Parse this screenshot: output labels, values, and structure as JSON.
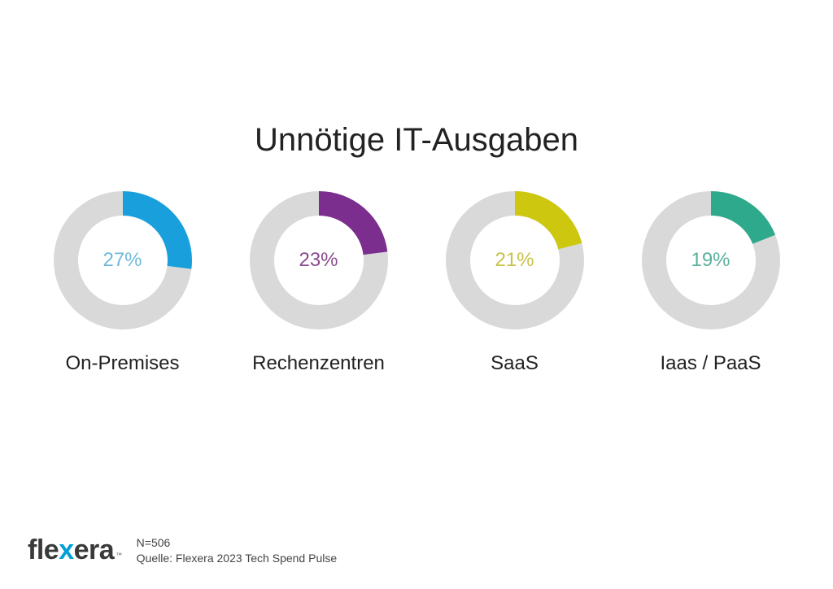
{
  "title": "Unnötige IT-Ausgaben",
  "background_color": "#ffffff",
  "title_fontsize": 40,
  "title_color": "#222222",
  "donut": {
    "track_color": "#d9d9d9",
    "track_width": 30,
    "outer_radius": 85,
    "label_fontsize": 24,
    "value_fontsize": 24,
    "label_color": "#222222"
  },
  "charts": [
    {
      "label": "On-Premises",
      "percent": 27,
      "color": "#19a0dc",
      "value_text": "27%",
      "value_color": "#6fb9d9"
    },
    {
      "label": "Rechenzentren",
      "percent": 23,
      "color": "#7b2e8e",
      "value_text": "23%",
      "value_color": "#8a4c8f"
    },
    {
      "label": "SaaS",
      "percent": 21,
      "color": "#cdc80f",
      "value_text": "21%",
      "value_color": "#c7c24a"
    },
    {
      "label": "Iaas / PaaS",
      "percent": 19,
      "color": "#2fa98b",
      "value_text": "19%",
      "value_color": "#5bb19d"
    }
  ],
  "footer": {
    "logo_text_pre": "fle",
    "logo_text_x": "x",
    "logo_text_post": "era",
    "logo_tm": "™",
    "n_line": "N=506",
    "source_line": "Quelle: Flexera 2023 Tech Spend Pulse"
  }
}
